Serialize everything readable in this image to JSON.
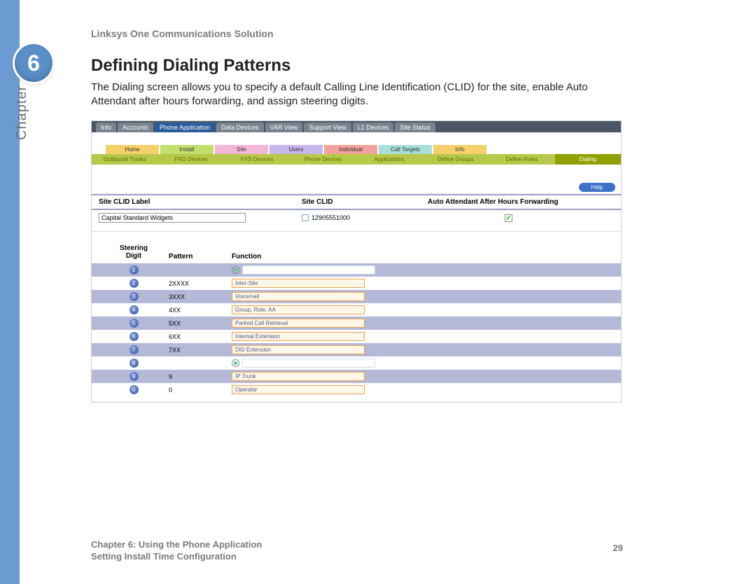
{
  "doc": {
    "header": "Linksys One Communications Solution",
    "chapter_number": "6",
    "chapter_word": "Chapter",
    "title": "Defining Dialing Patterns",
    "body": "The Dialing screen allows you to specify a default Calling Line Identification (CLID) for the site, enable Auto Attendant after hours forwarding, and assign steering digits.",
    "footer_line1": "Chapter 6: Using the Phone Application",
    "footer_line2": "Setting Install Time Configuration",
    "page_number": "29"
  },
  "ui": {
    "top_tabs": [
      {
        "label": "Info",
        "active": false
      },
      {
        "label": "Accounts",
        "active": false
      },
      {
        "label": "Phone Application",
        "active": true
      },
      {
        "label": "Data Devices",
        "active": false
      },
      {
        "label": "VAR View",
        "active": false
      },
      {
        "label": "Support View",
        "active": false
      },
      {
        "label": "L1 Devices",
        "active": false
      },
      {
        "label": "Site Status",
        "active": false
      }
    ],
    "color_tabs": [
      {
        "label": "Home",
        "bg": "#f7d06b"
      },
      {
        "label": "Install",
        "bg": "#c2de6d"
      },
      {
        "label": "Site",
        "bg": "#f4b6d6"
      },
      {
        "label": "Users",
        "bg": "#c7b6ea"
      },
      {
        "label": "Individual",
        "bg": "#f3a19c"
      },
      {
        "label": "Call Targets",
        "bg": "#a7e0d8"
      },
      {
        "label": "Info",
        "bg": "#f7d06b"
      }
    ],
    "sub_tabs": [
      {
        "label": "Outbound Trunks",
        "active": false
      },
      {
        "label": "FXO Devices",
        "active": false
      },
      {
        "label": "FXS Devices",
        "active": false
      },
      {
        "label": "Phone Devices",
        "active": false
      },
      {
        "label": "Applications",
        "active": false
      },
      {
        "label": "Define Groups",
        "active": false
      },
      {
        "label": "Define Roles",
        "active": false
      },
      {
        "label": "Dialing",
        "active": true
      }
    ],
    "help_label": "Help",
    "clid": {
      "h1": "Site CLID Label",
      "h2": "Site CLID",
      "h3": "Auto Attendant After Hours Forwarding",
      "label_value": "Capital Standard Widgets",
      "clid_value": "12905551000",
      "checkbox_checked": true
    },
    "steering": {
      "h_digit": "Steering Digit",
      "h_pattern": "Pattern",
      "h_function": "Function",
      "rows": [
        {
          "digit": "1",
          "pattern": "",
          "function": "",
          "stripe": true,
          "empty": true,
          "radio": true
        },
        {
          "digit": "2",
          "pattern": "2XXXX",
          "function": "Inter-Site",
          "stripe": false
        },
        {
          "digit": "3",
          "pattern": "3XXX",
          "function": "Voicemail",
          "stripe": true
        },
        {
          "digit": "4",
          "pattern": "4XX",
          "function": "Group, Role, AA",
          "stripe": false
        },
        {
          "digit": "5",
          "pattern": "5XX",
          "function": "Parked Call Retrieval",
          "stripe": true
        },
        {
          "digit": "6",
          "pattern": "6XX",
          "function": "Internal Extension",
          "stripe": false
        },
        {
          "digit": "7",
          "pattern": "7XX",
          "function": "DID Extension",
          "stripe": true
        },
        {
          "digit": "8",
          "pattern": "",
          "function": "",
          "stripe": false,
          "empty": true,
          "radio": true
        },
        {
          "digit": "9",
          "pattern": "9",
          "function": "IP Trunk",
          "stripe": true
        },
        {
          "digit": "0",
          "pattern": "0",
          "function": "Operator",
          "stripe": false
        }
      ]
    }
  },
  "colors": {
    "rail": "#6b9bd1",
    "badge": "#5a8fc8",
    "tab_bar": "#4a5665",
    "tab_inactive": "#7a8490",
    "tab_active": "#2b5c9c",
    "subtab_bar": "#b7c94a",
    "subtab_active": "#8fa000",
    "help": "#3e72c6",
    "stripe": "#b5b9d8",
    "func_border": "#f0a050",
    "func_bg": "#fff7e8"
  }
}
